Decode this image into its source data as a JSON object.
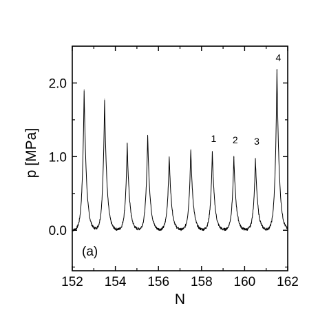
{
  "chart_data": {
    "type": "line",
    "title": "",
    "xlabel": "N",
    "ylabel": "p [MPa]",
    "panel_label": "(a)",
    "xlim": [
      152,
      162
    ],
    "ylim": [
      -0.55,
      2.5
    ],
    "x_ticks": [
      152,
      154,
      156,
      158,
      160,
      162
    ],
    "x_tick_labels": [
      "152",
      "154",
      "156",
      "158",
      "160",
      "162"
    ],
    "y_ticks": [
      0.0,
      1.0,
      2.0
    ],
    "y_tick_labels": [
      "0.0",
      "1.0",
      "2.0"
    ],
    "grid": false,
    "line_color": "#000000",
    "series": [
      {
        "peaks": [
          {
            "x": 152.55,
            "y": 1.91
          },
          {
            "x": 153.5,
            "y": 1.78
          },
          {
            "x": 154.55,
            "y": 1.17
          },
          {
            "x": 155.5,
            "y": 1.29
          },
          {
            "x": 156.5,
            "y": 1.0
          },
          {
            "x": 157.5,
            "y": 1.1
          },
          {
            "x": 158.5,
            "y": 1.06
          },
          {
            "x": 159.5,
            "y": 0.99
          },
          {
            "x": 160.5,
            "y": 0.97
          },
          {
            "x": 161.5,
            "y": 2.17
          }
        ]
      }
    ],
    "annotations": [
      {
        "text": "1",
        "x": 158.5,
        "y": 1.2
      },
      {
        "text": "2",
        "x": 159.5,
        "y": 1.18
      },
      {
        "text": "3",
        "x": 160.5,
        "y": 1.16
      },
      {
        "text": "4",
        "x": 161.5,
        "y": 2.3
      }
    ]
  }
}
